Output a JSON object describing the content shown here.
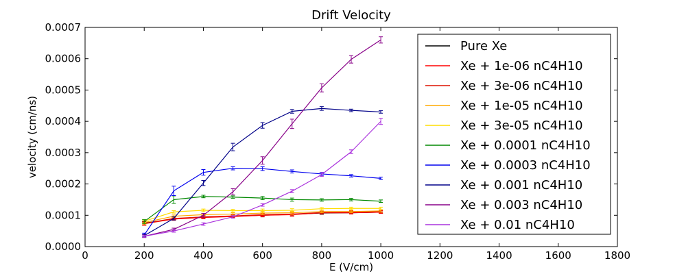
{
  "chart_data": {
    "type": "line",
    "title": "Drift Velocity",
    "xlabel": "E (V/cm)",
    "ylabel": "velocity (cm/ns)",
    "xlim": [
      0,
      1800
    ],
    "ylim": [
      0,
      0.0007
    ],
    "xticks": [
      "0",
      "200",
      "400",
      "600",
      "800",
      "1000",
      "1200",
      "1400",
      "1600",
      "1800"
    ],
    "yticks": [
      "0.0000",
      "0.0001",
      "0.0002",
      "0.0003",
      "0.0004",
      "0.0005",
      "0.0006",
      "0.0007"
    ],
    "grid": false,
    "legend_position": "top-right",
    "x": [
      200,
      300,
      400,
      500,
      600,
      700,
      800,
      900,
      1000
    ],
    "series": [
      {
        "name": "Pure Xe",
        "color": "#000000",
        "values": [
          7.5e-05,
          8.8e-05,
          9.5e-05,
          9.7e-05,
          0.0001,
          0.000103,
          0.000107,
          0.000108,
          0.00011
        ],
        "errors": [
          6e-06,
          4e-06,
          4e-06,
          4e-06,
          5e-06,
          5e-06,
          4e-06,
          4e-06,
          4e-06
        ]
      },
      {
        "name": "Xe + 1e-06 nC4H10",
        "color": "#ff0000",
        "values": [
          7.3e-05,
          8.8e-05,
          9.3e-05,
          9.6e-05,
          0.0001,
          0.000102,
          0.000108,
          0.000108,
          0.00011
        ],
        "errors": [
          5e-06,
          4e-06,
          4e-06,
          4e-06,
          5e-06,
          5e-06,
          4e-06,
          4e-06,
          4e-06
        ]
      },
      {
        "name": "Xe + 3e-06 nC4H10",
        "color": "#dd1100",
        "values": [
          7.4e-05,
          9e-05,
          9.5e-05,
          9.8e-05,
          0.000102,
          0.000104,
          0.000109,
          0.00011,
          0.000112
        ],
        "errors": [
          5e-06,
          4e-06,
          4e-06,
          4e-06,
          5e-06,
          5e-06,
          4e-06,
          4e-06,
          4e-06
        ]
      },
      {
        "name": "Xe + 1e-05 nC4H10",
        "color": "#ffaa00",
        "values": [
          7.7e-05,
          9.7e-05,
          0.000102,
          0.000104,
          0.000107,
          0.000108,
          0.000112,
          0.000112,
          0.000114
        ],
        "errors": [
          5e-06,
          4e-06,
          4e-06,
          4e-06,
          5e-06,
          5e-06,
          4e-06,
          4e-06,
          4e-06
        ]
      },
      {
        "name": "Xe + 3e-05 nC4H10",
        "color": "#ffdd00",
        "values": [
          8.1e-05,
          0.000111,
          0.000116,
          0.000115,
          0.000115,
          0.000116,
          0.000121,
          0.000122,
          0.000122
        ],
        "errors": [
          5e-06,
          4e-06,
          4e-06,
          4e-06,
          5e-06,
          5e-06,
          4e-06,
          4e-06,
          4e-06
        ]
      },
      {
        "name": "Xe + 0.0001 nC4H10",
        "color": "#008800",
        "values": [
          8e-05,
          0.00015,
          0.00016,
          0.000158,
          0.000155,
          0.00015,
          0.000149,
          0.00015,
          0.000145
        ],
        "errors": [
          6e-06,
          1.2e-05,
          4e-06,
          4e-06,
          5e-06,
          5e-06,
          4e-06,
          4e-06,
          4e-06
        ]
      },
      {
        "name": "Xe + 0.0003 nC4H10",
        "color": "#0000ee",
        "values": [
          3.7e-05,
          0.000178,
          0.000237,
          0.00025,
          0.000249,
          0.00024,
          0.000232,
          0.000226,
          0.000218
        ],
        "errors": [
          6e-06,
          1.5e-05,
          9e-06,
          5e-06,
          6e-06,
          5e-06,
          5e-06,
          4e-06,
          4e-06
        ]
      },
      {
        "name": "Xe + 0.001 nC4H10",
        "color": "#000088",
        "values": [
          3.5e-05,
          9e-05,
          0.000203,
          0.000318,
          0.000387,
          0.000432,
          0.000441,
          0.000435,
          0.00043
        ],
        "errors": [
          4e-06,
          5e-06,
          8e-06,
          1.2e-05,
          9e-06,
          6e-06,
          6e-06,
          4e-06,
          4e-06
        ]
      },
      {
        "name": "Xe + 0.003 nC4H10",
        "color": "#880088",
        "values": [
          3.3e-05,
          5.5e-05,
          0.0001,
          0.000175,
          0.000275,
          0.000392,
          0.000507,
          0.000598,
          0.00066
        ],
        "errors": [
          4e-06,
          4e-06,
          6e-06,
          1e-05,
          1.2e-05,
          1.5e-05,
          1.3e-05,
          1.2e-05,
          1e-05
        ]
      },
      {
        "name": "Xe + 0.01 nC4H10",
        "color": "#aa33dd",
        "values": [
          3.3e-05,
          5e-05,
          7.2e-05,
          9.5e-05,
          0.000133,
          0.000177,
          0.00023,
          0.000303,
          0.0004
        ],
        "errors": [
          3e-06,
          4e-06,
          4e-06,
          4e-06,
          4e-06,
          5e-06,
          6e-06,
          6e-06,
          1e-05
        ]
      }
    ]
  }
}
